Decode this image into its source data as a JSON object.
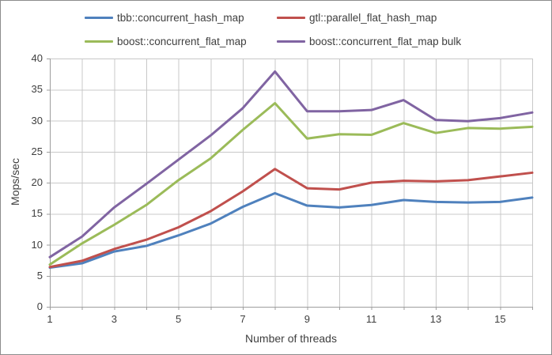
{
  "chart_data": {
    "type": "line",
    "title": "",
    "xlabel": "Number of threads",
    "ylabel": "Mops/sec",
    "x": [
      1,
      2,
      3,
      4,
      5,
      6,
      7,
      8,
      9,
      10,
      11,
      12,
      13,
      14,
      15,
      16
    ],
    "x_labeled_ticks": [
      1,
      3,
      5,
      7,
      9,
      11,
      13,
      15
    ],
    "ylim": [
      0,
      40
    ],
    "y_ticks": [
      0,
      5,
      10,
      15,
      20,
      25,
      30,
      35,
      40
    ],
    "grid": "both",
    "legend_position": "top",
    "series": [
      {
        "name": "tbb::concurrent_hash_map",
        "color": "#4F81BD",
        "values": [
          6.3,
          7.0,
          8.9,
          9.8,
          11.5,
          13.4,
          16.1,
          18.3,
          16.3,
          16.0,
          16.4,
          17.2,
          16.9,
          16.8,
          16.9,
          17.6
        ]
      },
      {
        "name": "gtl::parallel_flat_hash_map",
        "color": "#C0504D",
        "values": [
          6.4,
          7.4,
          9.3,
          10.8,
          12.8,
          15.4,
          18.6,
          22.2,
          19.1,
          18.9,
          20.0,
          20.3,
          20.2,
          20.4,
          21.0,
          21.6
        ]
      },
      {
        "name": "boost::concurrent_flat_map",
        "color": "#9BBB59",
        "values": [
          6.8,
          10.2,
          13.2,
          16.4,
          20.4,
          23.9,
          28.5,
          32.8,
          27.1,
          27.8,
          27.7,
          29.6,
          28.0,
          28.8,
          28.7,
          29.0
        ]
      },
      {
        "name": "boost::concurrent_flat_map bulk",
        "color": "#8064A2",
        "values": [
          8.0,
          11.3,
          16.0,
          19.8,
          23.7,
          27.6,
          32.0,
          37.9,
          31.5,
          31.5,
          31.7,
          33.3,
          30.1,
          29.9,
          30.4,
          31.3
        ]
      }
    ]
  },
  "colors": {
    "background": "#FFFFFF",
    "outer_border": "#8C8C8C",
    "gridline": "#C8C8C8",
    "axis_line": "#9E9E9E",
    "text": "#3F3F3F"
  }
}
